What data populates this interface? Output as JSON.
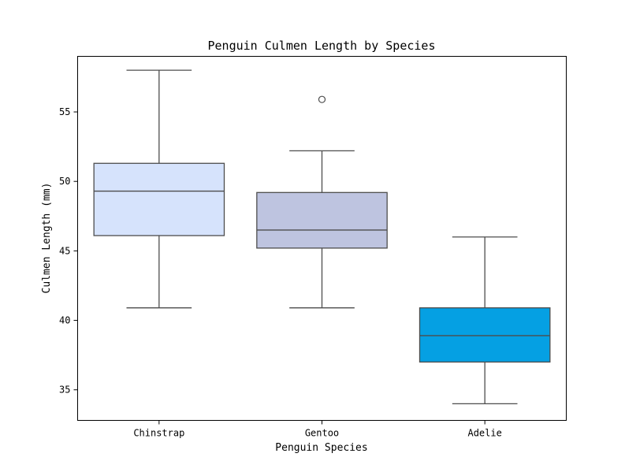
{
  "chart_data": {
    "type": "box",
    "title": "Penguin Culmen Length by Species",
    "xlabel": "Penguin Species",
    "ylabel": "Culmen Length (mm)",
    "ylim": [
      32.8,
      59.0
    ],
    "yticks": [
      35,
      40,
      45,
      50,
      55
    ],
    "grid": false,
    "categories": [
      "Chinstrap",
      "Gentoo",
      "Adelie"
    ],
    "boxes": [
      {
        "category": "Chinstrap",
        "whisker_low": 40.9,
        "q1": 46.1,
        "median": 49.3,
        "q3": 51.3,
        "whisker_high": 58.0,
        "outliers": [],
        "color": "#d6e3fc"
      },
      {
        "category": "Gentoo",
        "whisker_low": 40.9,
        "q1": 45.2,
        "median": 46.5,
        "q3": 49.2,
        "whisker_high": 52.2,
        "outliers": [
          55.9
        ],
        "color": "#bec4e0"
      },
      {
        "category": "Adelie",
        "whisker_low": 34.0,
        "q1": 37.0,
        "median": 38.9,
        "q3": 40.9,
        "whisker_high": 46.0,
        "outliers": [],
        "color": "#05a0e3"
      }
    ]
  }
}
